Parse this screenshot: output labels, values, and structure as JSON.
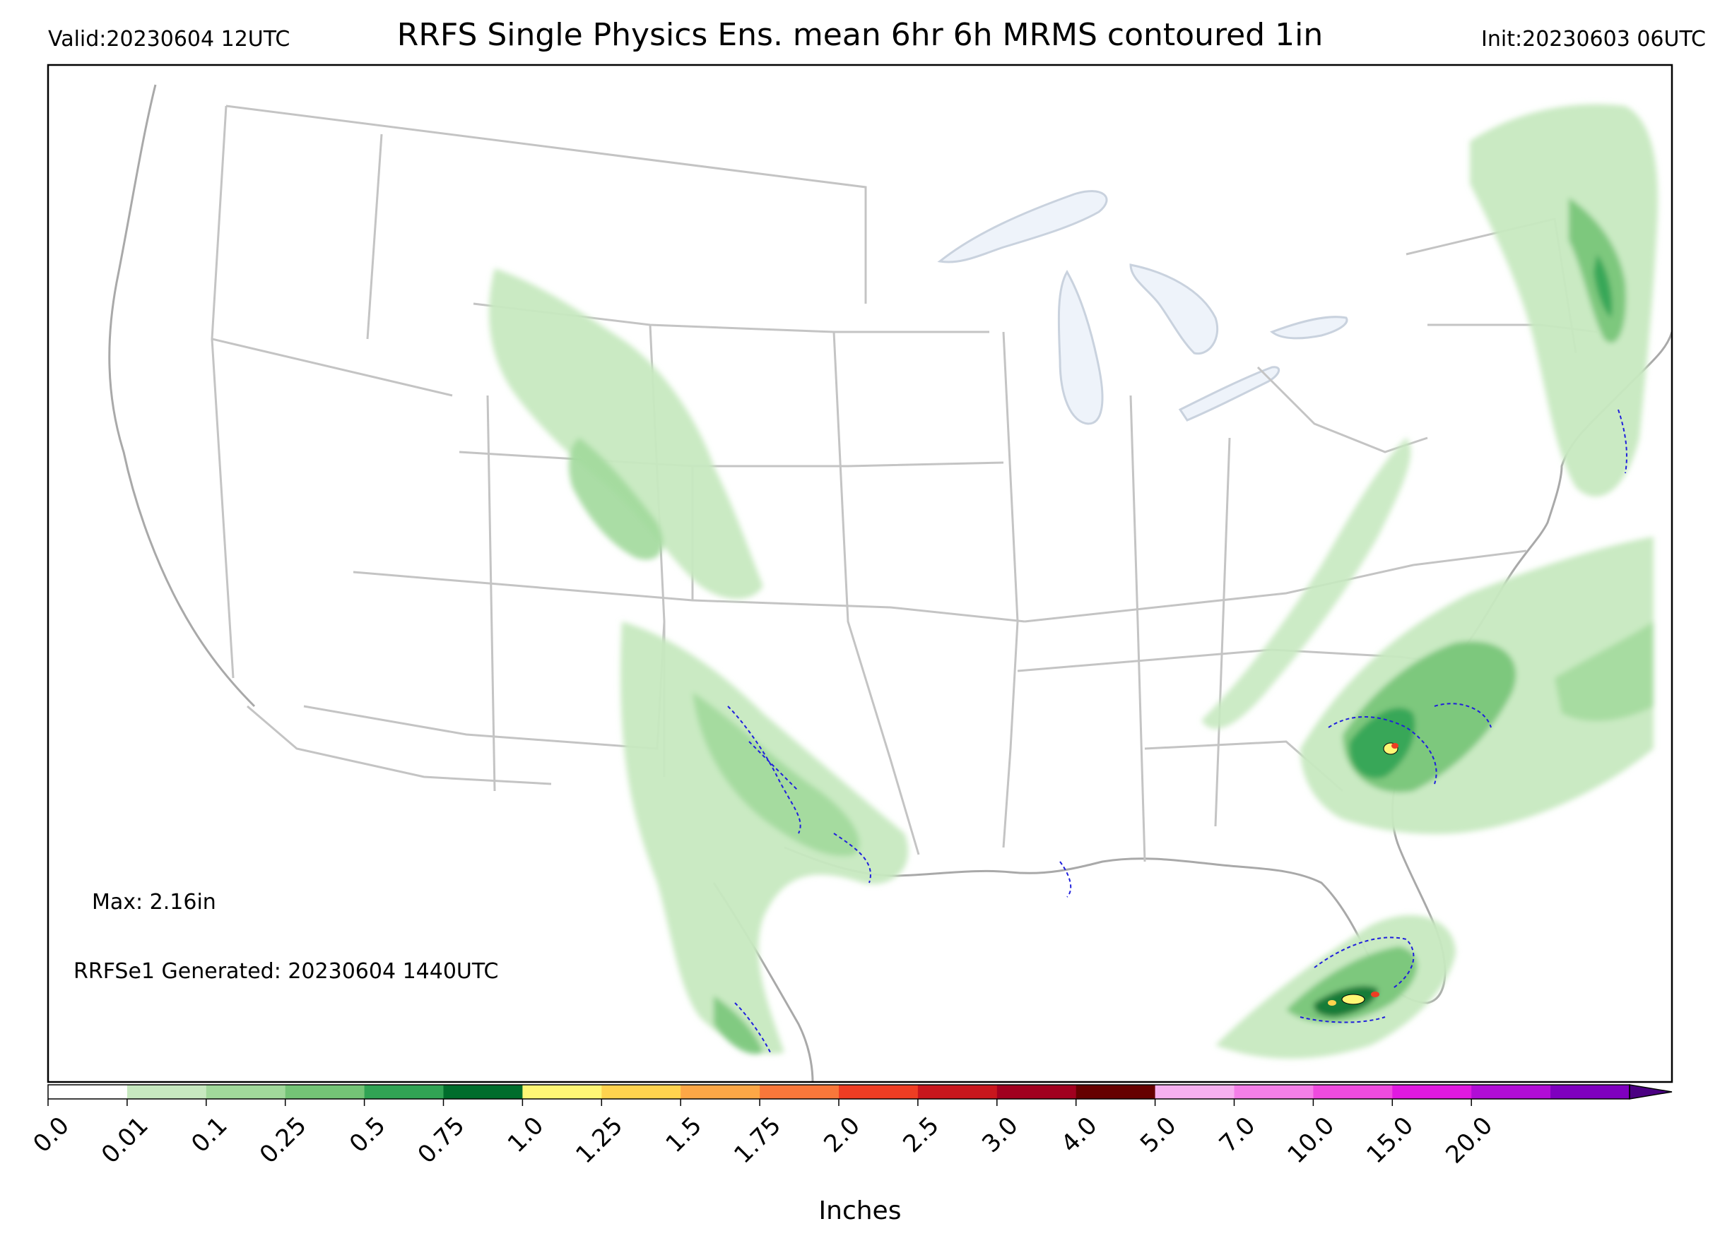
{
  "header": {
    "valid": "Valid:20230604 12UTC",
    "title": "RRFS Single Physics Ens. mean 6hr 6h MRMS contoured 1in",
    "init": "Init:20230603 06UTC"
  },
  "notes": {
    "max": "Max: 2.16in",
    "generated": "RRFSe1 Generated: 20230604 1440UTC"
  },
  "colorbar": {
    "label": "Inches",
    "extend": "max",
    "ticks": [
      "0.0",
      "0.01",
      "0.1",
      "0.25",
      "0.5",
      "0.75",
      "1.0",
      "1.25",
      "1.5",
      "1.75",
      "2.0",
      "2.5",
      "3.0",
      "4.0",
      "5.0",
      "7.0",
      "10.0",
      "15.0",
      "20.0"
    ],
    "colors": [
      "#ffffff",
      "#c7e9c0",
      "#a1d99b",
      "#74c476",
      "#31a354",
      "#006d2c",
      "#fff775",
      "#ffd34e",
      "#fda746",
      "#f9773a",
      "#ee3d23",
      "#c8161d",
      "#a1001f",
      "#660000",
      "#f7b0f0",
      "#f47fe8",
      "#ef4bdf",
      "#e019e0",
      "#b10dd6",
      "#7f00bf"
    ],
    "extend_color": "#4b0082"
  },
  "map": {
    "region": "CONUS",
    "lakes_color": "#eef3fa",
    "border_color": "#bdbdbd",
    "coast_color": "#a9a9a9",
    "mrms_contour_color": "#1f1fdc",
    "precip_areas": [
      {
        "region": "Rockies-Plains",
        "level": 0.01
      },
      {
        "region": "Texas",
        "level": 0.1
      },
      {
        "region": "Carolinas",
        "level": 0.5
      },
      {
        "region": "New England",
        "level": 0.25
      },
      {
        "region": "Florida",
        "level": 0.75
      }
    ]
  }
}
